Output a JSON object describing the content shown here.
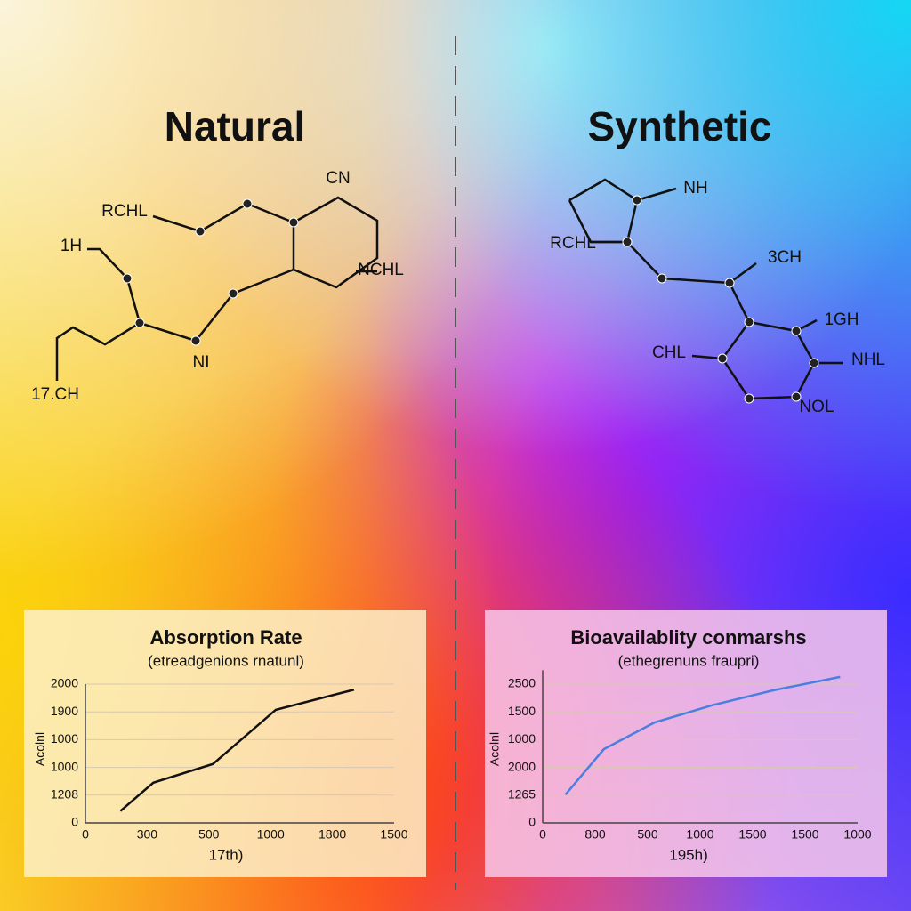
{
  "sections": [
    {
      "heading": "Natural",
      "labels": [
        "CN",
        "RCHL",
        "1H",
        "NCHL",
        "NI",
        "17.CH"
      ]
    },
    {
      "heading": "Synthetic",
      "labels": [
        "NH",
        "RCHL",
        "3CH",
        "1GH",
        "CHL",
        "NHL",
        "NOL"
      ]
    }
  ],
  "chart_data": [
    {
      "type": "line",
      "title": "Absorption Rate",
      "subtitle": "(etreadgenions rnatunl)",
      "x_label": "17th)",
      "y_label": "Acolnl",
      "x": [
        170,
        330,
        620,
        925,
        1305
      ],
      "series": [
        {
          "color": "#111111",
          "values": [
            170,
            580,
            850,
            1630,
            1920
          ]
        }
      ],
      "xlim": [
        0,
        1500
      ],
      "xticks": [
        0,
        300,
        {
          "value": 600,
          "label": "500"
        },
        {
          "value": 900,
          "label": "1000"
        },
        {
          "value": 1200,
          "label": "1800"
        },
        1500
      ],
      "ylim": [
        0,
        2000
      ],
      "yticks": [
        0,
        {
          "value": 400,
          "label": "1208"
        },
        {
          "value": 800,
          "label": "1000"
        },
        {
          "value": 1200,
          "label": "1000"
        },
        {
          "value": 1600,
          "label": "1900"
        },
        2000
      ],
      "grid": true
    },
    {
      "type": "line",
      "title": "Bioavailablity conmarshs",
      "subtitle": "(ethegrenuns fraupri)",
      "x_label": "195h)",
      "y_label": "Acolnl",
      "x": [
        130,
        350,
        640,
        970,
        1320,
        1700
      ],
      "series": [
        {
          "color": "#4a7fe0",
          "values": [
            510,
            1330,
            1810,
            2120,
            2390,
            2630
          ]
        }
      ],
      "xlim": [
        0,
        1800
      ],
      "xticks": [
        0,
        {
          "value": 300,
          "label": "800"
        },
        {
          "value": 600,
          "label": "500"
        },
        {
          "value": 900,
          "label": "1000"
        },
        {
          "value": 1200,
          "label": "1500"
        },
        1500,
        {
          "value": 1800,
          "label": "1000"
        }
      ],
      "ylim": [
        0,
        2750
      ],
      "yticks": [
        0,
        {
          "value": 500,
          "label": "1265"
        },
        {
          "value": 1000,
          "label": "2000"
        },
        {
          "value": 1500,
          "label": "1000"
        },
        {
          "value": 2000,
          "label": "1500"
        },
        2500
      ],
      "grid": true
    }
  ]
}
